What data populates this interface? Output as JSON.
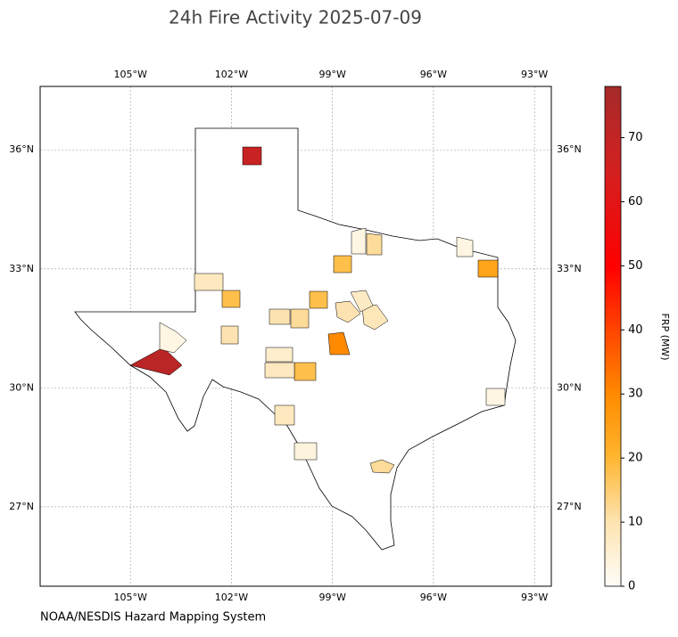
{
  "map": {
    "title": "24h Fire Activity 2025-07-09",
    "source": "NOAA/NESDIS Hazard Mapping System",
    "xlim": [
      -107.68,
      -92.5
    ],
    "ylim": [
      25.0,
      37.6
    ],
    "xticks": [
      {
        "value": -105,
        "label": "105°W"
      },
      {
        "value": -102,
        "label": "102°W"
      },
      {
        "value": -99,
        "label": "99°W"
      },
      {
        "value": -96,
        "label": "96°W"
      },
      {
        "value": -93,
        "label": "93°W"
      }
    ],
    "yticks": [
      {
        "value": 36,
        "label": "36°N"
      },
      {
        "value": 33,
        "label": "33°N"
      },
      {
        "value": 30,
        "label": "30°N"
      },
      {
        "value": 27,
        "label": "27°N"
      }
    ],
    "grid": true,
    "colorbar_label": "FRP (MW)",
    "colorbar_lim": [
      0,
      78
    ],
    "colorbar_ticks": [
      0,
      10,
      20,
      30,
      40,
      50,
      60,
      70
    ],
    "frp_values": [
      72,
      68,
      30,
      24,
      18,
      18,
      18,
      18,
      8,
      8,
      8,
      12,
      10,
      12,
      12,
      10,
      3,
      3,
      3,
      3,
      4,
      6,
      10,
      9,
      7
    ]
  }
}
